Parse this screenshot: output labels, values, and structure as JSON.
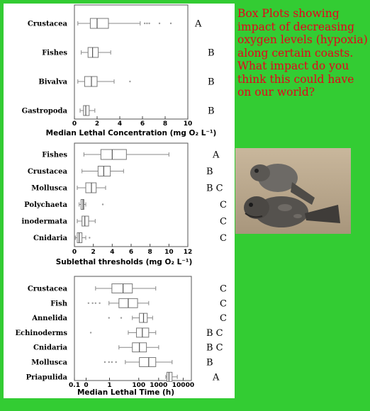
{
  "caption": "Box Plots showing impact of decreasing oxygen levels (hypoxia) along certain coasts. What impact do you think this could have on our world?",
  "colors": {
    "background": "#33cc33",
    "caption": "#e8001c",
    "box": "#888888"
  },
  "photo": {
    "icon": "fish-photo-icon"
  },
  "chart_data": [
    {
      "type": "box",
      "xlabel": "Median Lethal Concentration (mg O₂ L⁻¹)",
      "xscale": "linear",
      "xlim": [
        0,
        10
      ],
      "ticks": [
        "0",
        "2",
        "4",
        "6",
        "8",
        "10"
      ],
      "categories": [
        "Crustacea",
        "Fishes",
        "Bivalva",
        "Gastropoda"
      ],
      "groups": [
        "A",
        "B",
        "B",
        "B"
      ],
      "boxes": [
        {
          "whisker_low": 0.3,
          "q1": 1.4,
          "median": 2.0,
          "q3": 3.0,
          "whisker_high": 5.8,
          "outliers": [
            6.2,
            6.4,
            6.6,
            7.5,
            8.5
          ]
        },
        {
          "whisker_low": 0.6,
          "q1": 1.2,
          "median": 1.6,
          "q3": 2.1,
          "whisker_high": 3.2,
          "outliers": []
        },
        {
          "whisker_low": 0.3,
          "q1": 0.9,
          "median": 1.5,
          "q3": 2.0,
          "whisker_high": 3.5,
          "outliers": [
            4.9
          ]
        },
        {
          "whisker_low": 0.5,
          "q1": 0.8,
          "median": 1.0,
          "q3": 1.3,
          "whisker_high": 1.8,
          "outliers": []
        }
      ]
    },
    {
      "type": "box",
      "xlabel": "Sublethal thresholds (mg O₂ L⁻¹)",
      "xscale": "linear",
      "xlim": [
        0,
        12
      ],
      "ticks": [
        "0",
        "2",
        "4",
        "6",
        "8",
        "10",
        "12"
      ],
      "categories": [
        "Fishes",
        "Crustacea",
        "Mollusca",
        "Polychaeta",
        "inodermata",
        "Cnidaria"
      ],
      "groups": [
        "A",
        "B",
        "B C",
        "C",
        "C",
        "C"
      ],
      "boxes": [
        {
          "whisker_low": 1.0,
          "q1": 2.8,
          "median": 4.0,
          "q3": 5.5,
          "whisker_high": 10.0,
          "outliers": []
        },
        {
          "whisker_low": 0.8,
          "q1": 2.5,
          "median": 3.1,
          "q3": 3.8,
          "whisker_high": 5.2,
          "outliers": []
        },
        {
          "whisker_low": 0.3,
          "q1": 1.2,
          "median": 1.8,
          "q3": 2.3,
          "whisker_high": 3.3,
          "outliers": []
        },
        {
          "whisker_low": 0.5,
          "q1": 0.7,
          "median": 0.9,
          "q3": 1.0,
          "whisker_high": 1.2,
          "outliers": [
            3.0
          ]
        },
        {
          "whisker_low": 0.3,
          "q1": 0.8,
          "median": 1.1,
          "q3": 1.5,
          "whisker_high": 2.2,
          "outliers": []
        },
        {
          "whisker_low": 0.1,
          "q1": 0.3,
          "median": 0.5,
          "q3": 0.8,
          "whisker_high": 1.2,
          "outliers": [
            1.6
          ]
        }
      ]
    },
    {
      "type": "box",
      "xlabel": "Median Lethal Time (h)",
      "xscale": "log",
      "xlim": [
        0.1,
        10000
      ],
      "ticks": [
        "0.1",
        "0",
        "1",
        "100",
        "1000",
        "10000"
      ],
      "categories": [
        "Crustacea",
        "Fish",
        "Annelida",
        "Echinoderms",
        "Cnidaria",
        "Mollusca",
        "Priapulida"
      ],
      "groups": [
        "C",
        "C",
        "C",
        "B C",
        "B C",
        "B",
        "A"
      ],
      "boxes": [
        {
          "whisker_low": 0.8,
          "q1": 4,
          "median": 12,
          "q3": 30,
          "whisker_high": 300,
          "outliers": []
        },
        {
          "whisker_low": 3,
          "q1": 8,
          "median": 20,
          "q3": 50,
          "whisker_high": 150,
          "outliers": [
            0.4,
            0.6,
            0.8,
            1.2
          ]
        },
        {
          "whisker_low": 30,
          "q1": 60,
          "median": 90,
          "q3": 130,
          "whisker_high": 220,
          "outliers": [
            3,
            10
          ]
        },
        {
          "whisker_low": 20,
          "q1": 45,
          "median": 80,
          "q3": 150,
          "whisker_high": 300,
          "outliers": [
            0.5
          ]
        },
        {
          "whisker_low": 8,
          "q1": 30,
          "median": 60,
          "q3": 120,
          "whisker_high": 400,
          "outliers": []
        },
        {
          "whisker_low": 15,
          "q1": 60,
          "median": 150,
          "q3": 300,
          "whisker_high": 1500,
          "outliers": [
            2,
            3,
            4,
            6
          ]
        },
        {
          "whisker_low": 800,
          "q1": 900,
          "median": 1100,
          "q3": 1500,
          "whisker_high": 2500,
          "outliers": []
        }
      ]
    }
  ]
}
